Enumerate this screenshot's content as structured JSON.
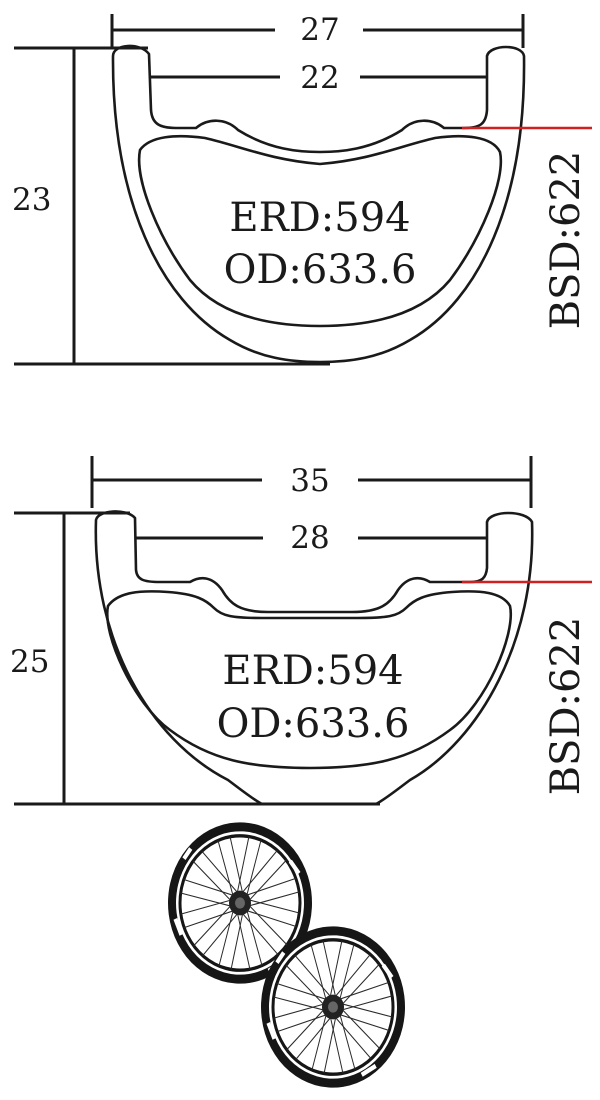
{
  "rim_profiles": [
    {
      "outer_width": "27",
      "inner_width": "22",
      "height": "23",
      "erd": "ERD:594",
      "od": "OD:633.6",
      "bsd": "BSD:622"
    },
    {
      "outer_width": "35",
      "inner_width": "28",
      "height": "25",
      "erd": "ERD:594",
      "od": "OD:633.6",
      "bsd": "BSD:622"
    }
  ],
  "colors": {
    "line": "#1a1a1a",
    "bsd_marker": "#d02020",
    "rim_fill": "#1a1a1a",
    "decal": "#ffffff"
  },
  "icons": [
    "wheelset-image"
  ]
}
